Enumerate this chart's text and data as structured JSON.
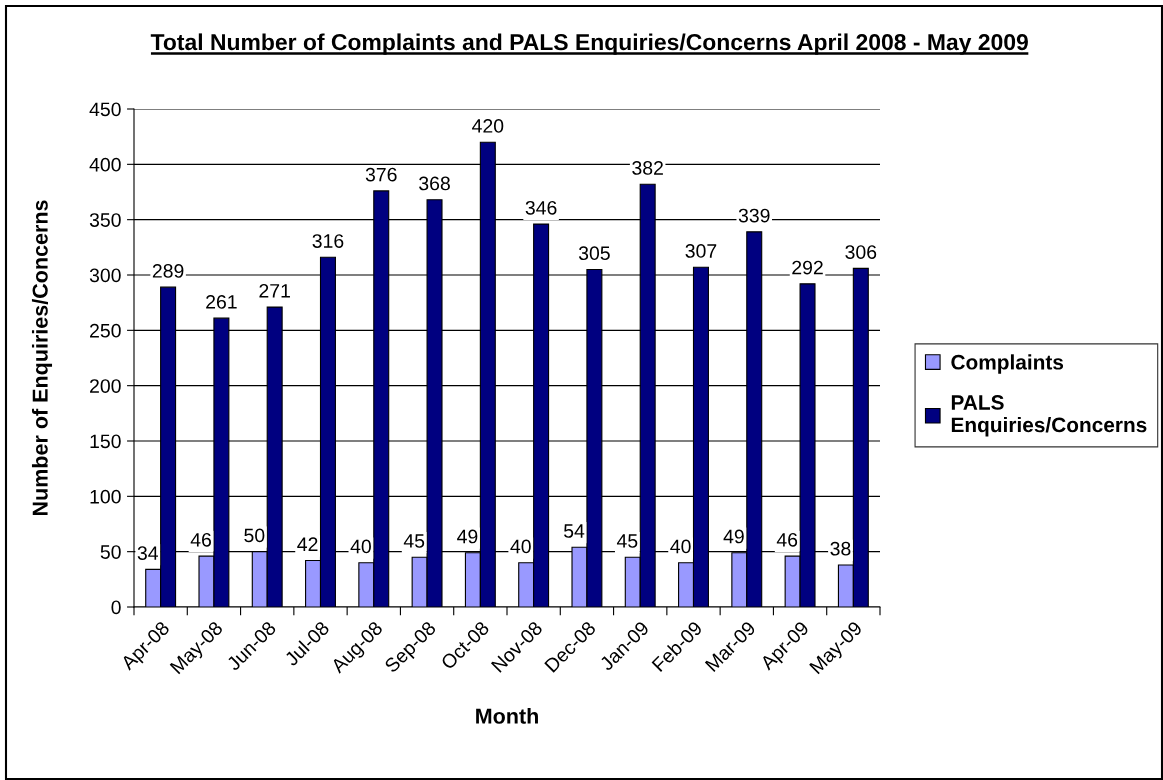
{
  "chart_data": {
    "type": "bar",
    "title": "Total Number of Complaints and PALS Enquiries/Concerns April 2008 - May 2009",
    "xlabel": "Month",
    "ylabel": "Number of Enquiries/Concerns",
    "categories": [
      "Apr-08",
      "May-08",
      "Jun-08",
      "Jul-08",
      "Aug-08",
      "Sep-08",
      "Oct-08",
      "Nov-08",
      "Dec-08",
      "Jan-09",
      "Feb-09",
      "Mar-09",
      "Apr-09",
      "May-09"
    ],
    "series": [
      {
        "name": "Complaints",
        "color": "#9999ff",
        "values": [
          34,
          46,
          50,
          42,
          40,
          45,
          49,
          40,
          54,
          45,
          40,
          49,
          46,
          38
        ]
      },
      {
        "name": "PALS\nEnquiries/Concerns",
        "color": "#000080",
        "values": [
          289,
          261,
          271,
          316,
          376,
          368,
          420,
          346,
          305,
          382,
          307,
          339,
          292,
          306
        ]
      }
    ],
    "ylim": [
      0,
      450
    ],
    "yticks": [
      0,
      50,
      100,
      150,
      200,
      250,
      300,
      350,
      400,
      450
    ],
    "grid": "y",
    "legend": "right",
    "data_labels": true
  }
}
